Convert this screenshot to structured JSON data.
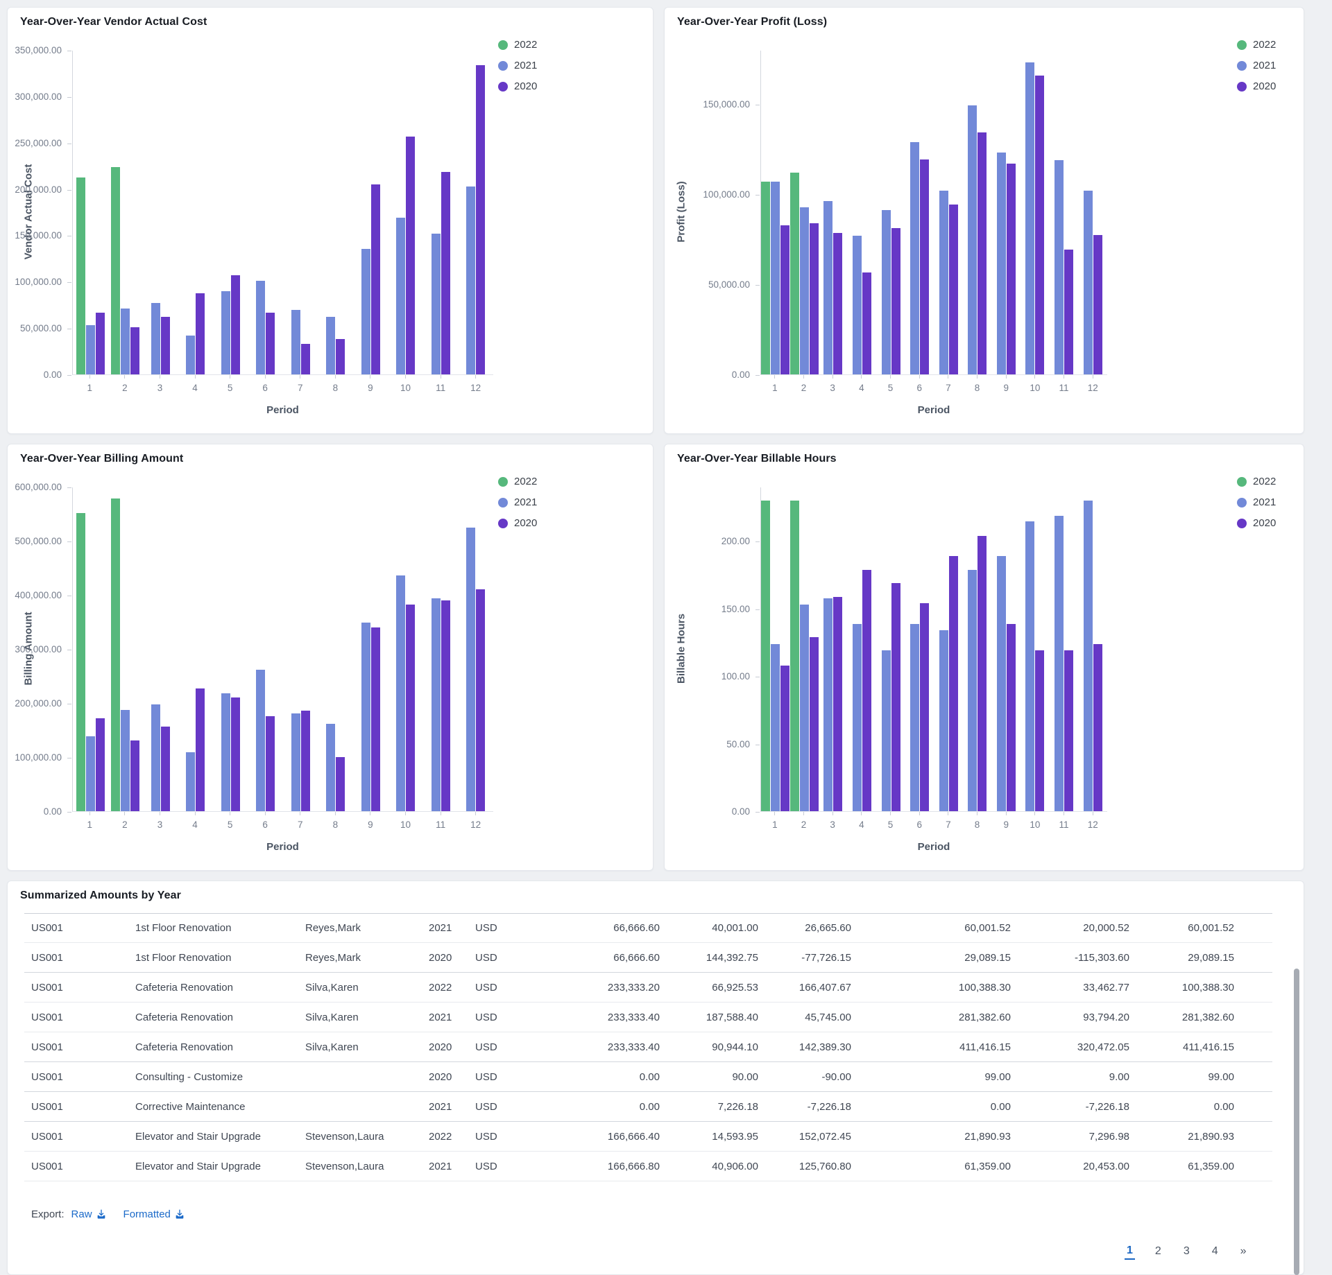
{
  "colors": {
    "green": "#56b87c",
    "blue": "#7289d8",
    "purple": "#6638c6",
    "link_blue": "#1b6ac9",
    "active_page_blue": "#1a66c2"
  },
  "chart_data": [
    {
      "type": "bar",
      "title": "Year-Over-Year Vendor Actual Cost",
      "ylabel": "Vendor Actual Cost",
      "xlabel": "Period",
      "ylim": [
        0,
        350000
      ],
      "grid": false,
      "legend_position": "top-right",
      "yticks": [
        {
          "v": 0,
          "label": "0.00"
        },
        {
          "v": 50000,
          "label": "50,000.00"
        },
        {
          "v": 100000,
          "label": "100,000.00"
        },
        {
          "v": 150000,
          "label": "150,000.00"
        },
        {
          "v": 200000,
          "label": "200,000.00"
        },
        {
          "v": 250000,
          "label": "250,000.00"
        },
        {
          "v": 300000,
          "label": "300,000.00"
        },
        {
          "v": 350000,
          "label": "350,000.00"
        }
      ],
      "categories": [
        "1",
        "2",
        "3",
        "4",
        "5",
        "6",
        "7",
        "8",
        "9",
        "10",
        "11",
        "12"
      ],
      "series": [
        {
          "name": "2022",
          "color": "green",
          "values": [
            213000,
            224000,
            null,
            null,
            null,
            null,
            null,
            null,
            null,
            null,
            null,
            null
          ]
        },
        {
          "name": "2021",
          "color": "blue",
          "values": [
            53500,
            71500,
            77500,
            42000,
            90000,
            101500,
            70000,
            62000,
            135500,
            169500,
            152500,
            203000
          ]
        },
        {
          "name": "2020",
          "color": "purple",
          "values": [
            67000,
            51000,
            62000,
            87500,
            107500,
            67000,
            33000,
            38500,
            205000,
            257000,
            218500,
            334000
          ]
        }
      ]
    },
    {
      "type": "bar",
      "title": "Year-Over-Year Profit (Loss)",
      "ylabel": "Profit (Loss)",
      "xlabel": "Period",
      "ylim": [
        0,
        180000
      ],
      "grid": false,
      "legend_position": "top-right",
      "yticks": [
        {
          "v": 0,
          "label": "0.00"
        },
        {
          "v": 50000,
          "label": "50,000.00"
        },
        {
          "v": 100000,
          "label": "100,000.00"
        },
        {
          "v": 150000,
          "label": "150,000.00"
        }
      ],
      "categories": [
        "1",
        "2",
        "3",
        "4",
        "5",
        "6",
        "7",
        "8",
        "9",
        "10",
        "11",
        "12"
      ],
      "series": [
        {
          "name": "2022",
          "color": "green",
          "values": [
            107000,
            112000,
            null,
            null,
            null,
            null,
            null,
            null,
            null,
            null,
            null,
            null
          ]
        },
        {
          "name": "2021",
          "color": "blue",
          "values": [
            107000,
            93000,
            96500,
            77000,
            91500,
            129000,
            102000,
            149500,
            123500,
            173500,
            119000,
            102000
          ]
        },
        {
          "name": "2020",
          "color": "purple",
          "values": [
            83000,
            84000,
            78500,
            56500,
            81500,
            119500,
            94500,
            134500,
            117000,
            166000,
            69500,
            77500
          ]
        }
      ]
    },
    {
      "type": "bar",
      "title": "Year-Over-Year Billing Amount",
      "ylabel": "Billing Amount",
      "xlabel": "Period",
      "ylim": [
        0,
        600000
      ],
      "grid": false,
      "legend_position": "top-right",
      "yticks": [
        {
          "v": 0,
          "label": "0.00"
        },
        {
          "v": 100000,
          "label": "100,000.00"
        },
        {
          "v": 200000,
          "label": "200,000.00"
        },
        {
          "v": 300000,
          "label": "300,000.00"
        },
        {
          "v": 400000,
          "label": "400,000.00"
        },
        {
          "v": 500000,
          "label": "500,000.00"
        },
        {
          "v": 600000,
          "label": "600,000.00"
        }
      ],
      "categories": [
        "1",
        "2",
        "3",
        "4",
        "5",
        "6",
        "7",
        "8",
        "9",
        "10",
        "11",
        "12"
      ],
      "series": [
        {
          "name": "2022",
          "color": "green",
          "values": [
            553000,
            580000,
            null,
            null,
            null,
            null,
            null,
            null,
            null,
            null,
            null,
            null
          ]
        },
        {
          "name": "2021",
          "color": "blue",
          "values": [
            139000,
            187500,
            197500,
            109000,
            218000,
            262000,
            181500,
            162000,
            350000,
            437000,
            395000,
            525000
          ]
        },
        {
          "name": "2020",
          "color": "purple",
          "values": [
            172000,
            131000,
            157000,
            227000,
            211000,
            176000,
            186500,
            100000,
            341000,
            383000,
            390000,
            411000
          ]
        }
      ]
    },
    {
      "type": "bar",
      "title": "Year-Over-Year Billable Hours",
      "ylabel": "Billable Hours",
      "xlabel": "Period",
      "ylim": [
        0,
        240
      ],
      "grid": false,
      "legend_position": "top-right",
      "yticks": [
        {
          "v": 0,
          "label": "0.00"
        },
        {
          "v": 50,
          "label": "50.00"
        },
        {
          "v": 100,
          "label": "100.00"
        },
        {
          "v": 150,
          "label": "150.00"
        },
        {
          "v": 200,
          "label": "200.00"
        }
      ],
      "categories": [
        "1",
        "2",
        "3",
        "4",
        "5",
        "6",
        "7",
        "8",
        "9",
        "10",
        "11",
        "12"
      ],
      "series": [
        {
          "name": "2022",
          "color": "green",
          "values": [
            230,
            230,
            null,
            null,
            null,
            null,
            null,
            null,
            null,
            null,
            null,
            null
          ]
        },
        {
          "name": "2021",
          "color": "blue",
          "values": [
            124,
            153,
            158,
            139,
            119,
            139,
            134,
            179,
            189,
            215,
            219,
            230
          ]
        },
        {
          "name": "2020",
          "color": "purple",
          "values": [
            108,
            129,
            159,
            179,
            169,
            154,
            189,
            204,
            139,
            119,
            119,
            124
          ]
        }
      ]
    }
  ],
  "table": {
    "title": "Summarized Amounts by Year",
    "rows": [
      {
        "cells": [
          "US001",
          "1st Floor Renovation",
          "Reyes,Mark",
          "2021",
          "USD",
          "66,666.60",
          "40,001.00",
          "26,665.60",
          "60,001.52",
          "20,000.52",
          "60,001.52"
        ],
        "group_end": false
      },
      {
        "cells": [
          "US001",
          "1st Floor Renovation",
          "Reyes,Mark",
          "2020",
          "USD",
          "66,666.60",
          "144,392.75",
          "-77,726.15",
          "29,089.15",
          "-115,303.60",
          "29,089.15"
        ],
        "group_end": true
      },
      {
        "cells": [
          "US001",
          "Cafeteria Renovation",
          "Silva,Karen",
          "2022",
          "USD",
          "233,333.20",
          "66,925.53",
          "166,407.67",
          "100,388.30",
          "33,462.77",
          "100,388.30"
        ],
        "group_end": false
      },
      {
        "cells": [
          "US001",
          "Cafeteria Renovation",
          "Silva,Karen",
          "2021",
          "USD",
          "233,333.40",
          "187,588.40",
          "45,745.00",
          "281,382.60",
          "93,794.20",
          "281,382.60"
        ],
        "group_end": false
      },
      {
        "cells": [
          "US001",
          "Cafeteria Renovation",
          "Silva,Karen",
          "2020",
          "USD",
          "233,333.40",
          "90,944.10",
          "142,389.30",
          "411,416.15",
          "320,472.05",
          "411,416.15"
        ],
        "group_end": true
      },
      {
        "cells": [
          "US001",
          "Consulting - Customize",
          "",
          "2020",
          "USD",
          "0.00",
          "90.00",
          "-90.00",
          "99.00",
          "9.00",
          "99.00"
        ],
        "group_end": true
      },
      {
        "cells": [
          "US001",
          "Corrective Maintenance",
          "",
          "2021",
          "USD",
          "0.00",
          "7,226.18",
          "-7,226.18",
          "0.00",
          "-7,226.18",
          "0.00"
        ],
        "group_end": true
      },
      {
        "cells": [
          "US001",
          "Elevator and Stair Upgrade",
          "Stevenson,Laura",
          "2022",
          "USD",
          "166,666.40",
          "14,593.95",
          "152,072.45",
          "21,890.93",
          "7,296.98",
          "21,890.93"
        ],
        "group_end": false
      },
      {
        "cells": [
          "US001",
          "Elevator and Stair Upgrade",
          "Stevenson,Laura",
          "2021",
          "USD",
          "166,666.80",
          "40,906.00",
          "125,760.80",
          "61,359.00",
          "20,453.00",
          "61,359.00"
        ],
        "group_end": false
      }
    ],
    "export_label": "Export:",
    "export_links": [
      "Raw",
      "Formatted"
    ],
    "pagination": {
      "pages": [
        "1",
        "2",
        "3",
        "4"
      ],
      "active": "1",
      "next": "»"
    }
  }
}
